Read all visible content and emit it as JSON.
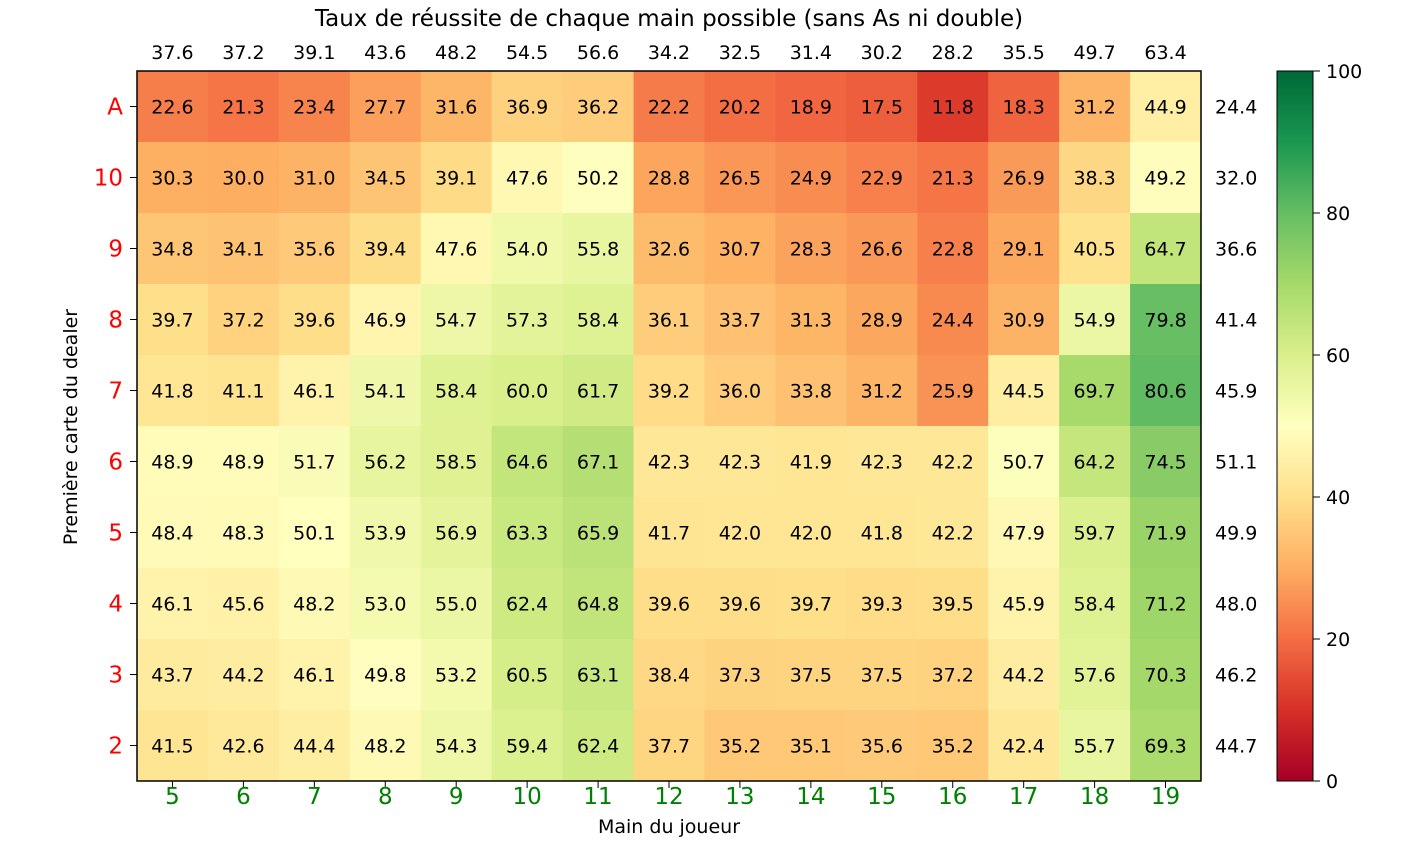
{
  "chart_data": {
    "type": "heatmap",
    "title": "Taux de réussite de chaque main possible (sans As ni double)",
    "xlabel": "Main du joueur",
    "ylabel": "Première carte du dealer",
    "x_categories": [
      "5",
      "6",
      "7",
      "8",
      "9",
      "10",
      "11",
      "12",
      "13",
      "14",
      "15",
      "16",
      "17",
      "18",
      "19"
    ],
    "y_categories": [
      "A",
      "10",
      "9",
      "8",
      "7",
      "6",
      "5",
      "4",
      "3",
      "2"
    ],
    "values": [
      [
        22.6,
        21.3,
        23.4,
        27.7,
        31.6,
        36.9,
        36.2,
        22.2,
        20.2,
        18.9,
        17.5,
        11.8,
        18.3,
        31.2,
        44.9
      ],
      [
        30.3,
        30.0,
        31.0,
        34.5,
        39.1,
        47.6,
        50.2,
        28.8,
        26.5,
        24.9,
        22.9,
        21.3,
        26.9,
        38.3,
        49.2
      ],
      [
        34.8,
        34.1,
        35.6,
        39.4,
        47.6,
        54.0,
        55.8,
        32.6,
        30.7,
        28.3,
        26.6,
        22.8,
        29.1,
        40.5,
        64.7
      ],
      [
        39.7,
        37.2,
        39.6,
        46.9,
        54.7,
        57.3,
        58.4,
        36.1,
        33.7,
        31.3,
        28.9,
        24.4,
        30.9,
        54.9,
        79.8
      ],
      [
        41.8,
        41.1,
        46.1,
        54.1,
        58.4,
        60.0,
        61.7,
        39.2,
        36.0,
        33.8,
        31.2,
        25.9,
        44.5,
        69.7,
        80.6
      ],
      [
        48.9,
        48.9,
        51.7,
        56.2,
        58.5,
        64.6,
        67.1,
        42.3,
        42.3,
        41.9,
        42.3,
        42.2,
        50.7,
        64.2,
        74.5
      ],
      [
        48.4,
        48.3,
        50.1,
        53.9,
        56.9,
        63.3,
        65.9,
        41.7,
        42.0,
        42.0,
        41.8,
        42.2,
        47.9,
        59.7,
        71.9
      ],
      [
        46.1,
        45.6,
        48.2,
        53.0,
        55.0,
        62.4,
        64.8,
        39.6,
        39.6,
        39.7,
        39.3,
        39.5,
        45.9,
        58.4,
        71.2
      ],
      [
        43.7,
        44.2,
        46.1,
        49.8,
        53.2,
        60.5,
        63.1,
        38.4,
        37.3,
        37.5,
        37.5,
        37.2,
        44.2,
        57.6,
        70.3
      ],
      [
        41.5,
        42.6,
        44.4,
        48.2,
        54.3,
        59.4,
        62.4,
        37.7,
        35.2,
        35.1,
        35.6,
        35.2,
        42.4,
        55.7,
        69.3
      ]
    ],
    "column_averages": [
      "37.6",
      "37.2",
      "39.1",
      "43.6",
      "48.2",
      "54.5",
      "56.6",
      "34.2",
      "32.5",
      "31.4",
      "30.2",
      "28.2",
      "35.5",
      "49.7",
      "63.4"
    ],
    "row_averages": [
      "24.4",
      "32.0",
      "36.6",
      "41.4",
      "45.9",
      "51.1",
      "49.9",
      "48.0",
      "46.2",
      "44.7"
    ],
    "colormap": "RdYlGn",
    "colorbar": {
      "range": [
        0,
        100
      ],
      "ticks": [
        "0",
        "20",
        "40",
        "60",
        "80",
        "100"
      ]
    },
    "colors": {
      "x_tick_labels": "#008000",
      "y_tick_labels": "#ff0000",
      "text": "#000000"
    }
  }
}
